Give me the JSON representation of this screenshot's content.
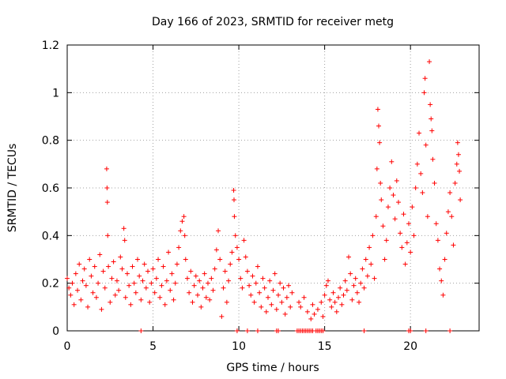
{
  "chart_data": {
    "type": "scatter",
    "title": "Day 166 of 2023, SRMTID for receiver metg",
    "xlabel": "GPS time / hours",
    "ylabel": "SRMTID / TECUs",
    "xlim": [
      0,
      24
    ],
    "ylim": [
      0,
      1.2
    ],
    "xticks": [
      0,
      5,
      10,
      15,
      20
    ],
    "yticks": [
      0,
      0.2,
      0.4,
      0.6,
      0.8,
      1.0,
      1.2
    ],
    "xtick_labels": [
      "0",
      "5",
      "10",
      "15",
      "20"
    ],
    "ytick_labels": [
      "0",
      "0.2",
      "0.4",
      "0.6",
      "0.8",
      "1",
      "1.2"
    ],
    "grid": true,
    "marker": "+",
    "series": [
      {
        "name": "SRMTID",
        "color": "#ff0000",
        "points": [
          [
            0.0,
            0.22
          ],
          [
            0.1,
            0.18
          ],
          [
            0.2,
            0.15
          ],
          [
            0.3,
            0.2
          ],
          [
            0.4,
            0.11
          ],
          [
            0.5,
            0.24
          ],
          [
            0.6,
            0.17
          ],
          [
            0.7,
            0.28
          ],
          [
            0.8,
            0.13
          ],
          [
            0.9,
            0.21
          ],
          [
            1.0,
            0.26
          ],
          [
            1.1,
            0.19
          ],
          [
            1.2,
            0.1
          ],
          [
            1.3,
            0.3
          ],
          [
            1.4,
            0.23
          ],
          [
            1.5,
            0.16
          ],
          [
            1.6,
            0.27
          ],
          [
            1.7,
            0.14
          ],
          [
            1.8,
            0.2
          ],
          [
            1.9,
            0.32
          ],
          [
            2.0,
            0.09
          ],
          [
            2.1,
            0.25
          ],
          [
            2.2,
            0.18
          ],
          [
            2.3,
            0.68
          ],
          [
            2.32,
            0.6
          ],
          [
            2.34,
            0.54
          ],
          [
            2.36,
            0.4
          ],
          [
            2.4,
            0.27
          ],
          [
            2.5,
            0.12
          ],
          [
            2.6,
            0.22
          ],
          [
            2.7,
            0.29
          ],
          [
            2.8,
            0.15
          ],
          [
            2.9,
            0.21
          ],
          [
            3.0,
            0.17
          ],
          [
            3.1,
            0.31
          ],
          [
            3.2,
            0.26
          ],
          [
            3.3,
            0.43
          ],
          [
            3.35,
            0.38
          ],
          [
            3.4,
            0.14
          ],
          [
            3.5,
            0.24
          ],
          [
            3.6,
            0.19
          ],
          [
            3.7,
            0.11
          ],
          [
            3.8,
            0.27
          ],
          [
            3.9,
            0.2
          ],
          [
            4.0,
            0.16
          ],
          [
            4.1,
            0.3
          ],
          [
            4.2,
            0.23
          ],
          [
            4.3,
            0.13
          ],
          [
            4.4,
            0.21
          ],
          [
            4.5,
            0.28
          ],
          [
            4.6,
            0.18
          ],
          [
            4.7,
            0.25
          ],
          [
            4.8,
            0.12
          ],
          [
            4.9,
            0.2
          ],
          [
            5.0,
            0.26
          ],
          [
            5.1,
            0.16
          ],
          [
            5.2,
            0.22
          ],
          [
            5.3,
            0.3
          ],
          [
            5.4,
            0.14
          ],
          [
            5.5,
            0.19
          ],
          [
            5.6,
            0.27
          ],
          [
            5.7,
            0.11
          ],
          [
            5.8,
            0.21
          ],
          [
            5.9,
            0.33
          ],
          [
            6.0,
            0.17
          ],
          [
            6.1,
            0.24
          ],
          [
            6.2,
            0.13
          ],
          [
            6.3,
            0.2
          ],
          [
            6.4,
            0.28
          ],
          [
            6.5,
            0.35
          ],
          [
            6.6,
            0.42
          ],
          [
            6.7,
            0.46
          ],
          [
            6.8,
            0.48
          ],
          [
            6.85,
            0.4
          ],
          [
            6.9,
            0.3
          ],
          [
            7.0,
            0.22
          ],
          [
            7.1,
            0.16
          ],
          [
            7.2,
            0.25
          ],
          [
            7.3,
            0.12
          ],
          [
            7.4,
            0.19
          ],
          [
            7.5,
            0.23
          ],
          [
            7.6,
            0.15
          ],
          [
            7.7,
            0.21
          ],
          [
            7.8,
            0.1
          ],
          [
            7.9,
            0.18
          ],
          [
            8.0,
            0.24
          ],
          [
            8.1,
            0.14
          ],
          [
            8.2,
            0.2
          ],
          [
            8.3,
            0.13
          ],
          [
            8.4,
            0.22
          ],
          [
            8.5,
            0.17
          ],
          [
            8.6,
            0.26
          ],
          [
            8.7,
            0.34
          ],
          [
            8.8,
            0.42
          ],
          [
            8.9,
            0.3
          ],
          [
            9.0,
            0.06
          ],
          [
            9.1,
            0.18
          ],
          [
            9.2,
            0.25
          ],
          [
            9.3,
            0.12
          ],
          [
            9.4,
            0.21
          ],
          [
            9.5,
            0.28
          ],
          [
            9.6,
            0.33
          ],
          [
            9.7,
            0.59
          ],
          [
            9.72,
            0.55
          ],
          [
            9.74,
            0.48
          ],
          [
            9.8,
            0.4
          ],
          [
            9.9,
            0.35
          ],
          [
            10.0,
            0.3
          ],
          [
            10.1,
            0.22
          ],
          [
            10.2,
            0.18
          ],
          [
            10.3,
            0.38
          ],
          [
            10.4,
            0.31
          ],
          [
            10.5,
            0.25
          ],
          [
            10.6,
            0.19
          ],
          [
            10.7,
            0.15
          ],
          [
            10.8,
            0.23
          ],
          [
            10.9,
            0.12
          ],
          [
            11.0,
            0.2
          ],
          [
            11.1,
            0.27
          ],
          [
            11.2,
            0.16
          ],
          [
            11.3,
            0.1
          ],
          [
            11.4,
            0.22
          ],
          [
            11.5,
            0.18
          ],
          [
            11.6,
            0.08
          ],
          [
            11.7,
            0.14
          ],
          [
            11.8,
            0.21
          ],
          [
            11.9,
            0.11
          ],
          [
            12.0,
            0.17
          ],
          [
            12.1,
            0.24
          ],
          [
            12.2,
            0.09
          ],
          [
            12.3,
            0.15
          ],
          [
            12.4,
            0.2
          ],
          [
            12.5,
            0.12
          ],
          [
            12.6,
            0.18
          ],
          [
            12.7,
            0.07
          ],
          [
            12.8,
            0.14
          ],
          [
            12.9,
            0.19
          ],
          [
            13.0,
            0.1
          ],
          [
            13.1,
            0.16
          ],
          [
            13.5,
            0.12
          ],
          [
            13.6,
            0.1
          ],
          [
            13.8,
            0.14
          ],
          [
            14.0,
            0.08
          ],
          [
            14.2,
            0.05
          ],
          [
            14.3,
            0.11
          ],
          [
            14.4,
            0.07
          ],
          [
            14.6,
            0.09
          ],
          [
            14.8,
            0.12
          ],
          [
            14.9,
            0.06
          ],
          [
            15.0,
            0.15
          ],
          [
            15.1,
            0.19
          ],
          [
            15.2,
            0.21
          ],
          [
            15.3,
            0.13
          ],
          [
            15.4,
            0.1
          ],
          [
            15.5,
            0.16
          ],
          [
            15.6,
            0.12
          ],
          [
            15.7,
            0.08
          ],
          [
            15.8,
            0.14
          ],
          [
            15.9,
            0.18
          ],
          [
            16.0,
            0.11
          ],
          [
            16.1,
            0.15
          ],
          [
            16.2,
            0.21
          ],
          [
            16.3,
            0.17
          ],
          [
            16.4,
            0.31
          ],
          [
            16.5,
            0.24
          ],
          [
            16.6,
            0.13
          ],
          [
            16.7,
            0.19
          ],
          [
            16.8,
            0.22
          ],
          [
            16.9,
            0.16
          ],
          [
            17.0,
            0.12
          ],
          [
            17.1,
            0.2
          ],
          [
            17.2,
            0.26
          ],
          [
            17.3,
            0.18
          ],
          [
            17.4,
            0.3
          ],
          [
            17.5,
            0.23
          ],
          [
            17.6,
            0.35
          ],
          [
            17.7,
            0.28
          ],
          [
            17.8,
            0.4
          ],
          [
            17.9,
            0.22
          ],
          [
            18.0,
            0.48
          ],
          [
            18.05,
            0.68
          ],
          [
            18.1,
            0.93
          ],
          [
            18.15,
            0.86
          ],
          [
            18.2,
            0.79
          ],
          [
            18.25,
            0.62
          ],
          [
            18.3,
            0.55
          ],
          [
            18.4,
            0.44
          ],
          [
            18.5,
            0.3
          ],
          [
            18.6,
            0.38
          ],
          [
            18.7,
            0.52
          ],
          [
            18.8,
            0.6
          ],
          [
            18.9,
            0.71
          ],
          [
            19.0,
            0.57
          ],
          [
            19.1,
            0.47
          ],
          [
            19.2,
            0.63
          ],
          [
            19.3,
            0.54
          ],
          [
            19.4,
            0.41
          ],
          [
            19.5,
            0.35
          ],
          [
            19.6,
            0.49
          ],
          [
            19.7,
            0.28
          ],
          [
            19.8,
            0.37
          ],
          [
            19.9,
            0.45
          ],
          [
            20.0,
            0.33
          ],
          [
            20.1,
            0.52
          ],
          [
            20.2,
            0.4
          ],
          [
            20.3,
            0.6
          ],
          [
            20.4,
            0.7
          ],
          [
            20.5,
            0.83
          ],
          [
            20.6,
            0.66
          ],
          [
            20.7,
            0.58
          ],
          [
            20.8,
            1.0
          ],
          [
            20.85,
            1.06
          ],
          [
            20.9,
            0.78
          ],
          [
            21.0,
            0.48
          ],
          [
            21.1,
            1.13
          ],
          [
            21.15,
            0.95
          ],
          [
            21.2,
            0.89
          ],
          [
            21.25,
            0.84
          ],
          [
            21.3,
            0.72
          ],
          [
            21.4,
            0.62
          ],
          [
            21.5,
            0.45
          ],
          [
            21.6,
            0.38
          ],
          [
            21.7,
            0.26
          ],
          [
            21.8,
            0.21
          ],
          [
            21.9,
            0.15
          ],
          [
            22.0,
            0.3
          ],
          [
            22.1,
            0.41
          ],
          [
            22.2,
            0.5
          ],
          [
            22.3,
            0.58
          ],
          [
            22.4,
            0.48
          ],
          [
            22.5,
            0.36
          ],
          [
            22.6,
            0.62
          ],
          [
            22.7,
            0.7
          ],
          [
            22.75,
            0.79
          ],
          [
            22.8,
            0.74
          ],
          [
            22.85,
            0.67
          ],
          [
            22.9,
            0.55
          ]
        ],
        "zero_points": [
          4.3,
          9.9,
          10.5,
          11.1,
          12.2,
          12.3,
          13.4,
          13.5,
          13.6,
          13.7,
          13.8,
          13.9,
          14.0,
          14.1,
          14.2,
          14.3,
          14.5,
          14.6,
          14.7,
          14.8,
          14.9,
          17.3,
          19.9,
          20.0,
          20.9,
          22.3
        ]
      }
    ]
  }
}
